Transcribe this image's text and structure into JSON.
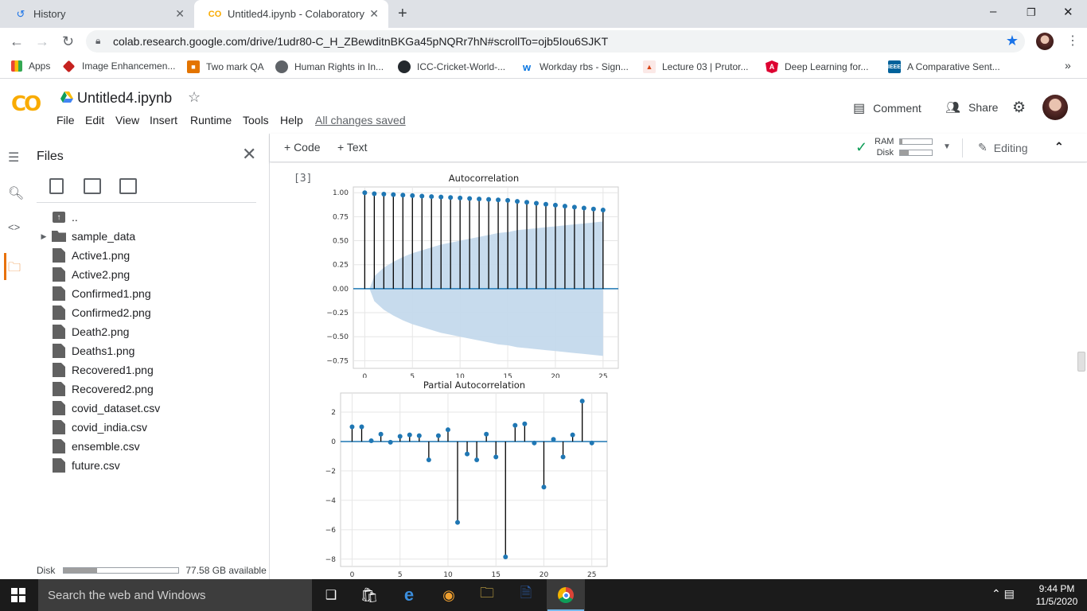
{
  "browser": {
    "tabs": [
      {
        "title": "History",
        "icon": "history-icon"
      },
      {
        "title": "Untitled4.ipynb - Colaboratory",
        "icon": "colab-icon"
      }
    ],
    "url": "colab.research.google.com/drive/1udr80-C_H_ZBewditnBKGa45pNQRr7hN#scrollTo=ojb5Iou6SJKT",
    "bookmarks": [
      {
        "label": "Apps",
        "icon": "apps-grid-icon"
      },
      {
        "label": "Image Enhancemen...",
        "icon": "bookmark-favicon"
      },
      {
        "label": "Two mark QA",
        "icon": "bookmark-favicon"
      },
      {
        "label": "Human Rights in In...",
        "icon": "bookmark-favicon"
      },
      {
        "label": "ICC-Cricket-World-...",
        "icon": "github-icon"
      },
      {
        "label": "Workday rbs - Sign...",
        "icon": "workday-icon"
      },
      {
        "label": "Lecture 03 | Prutor...",
        "icon": "bookmark-favicon"
      },
      {
        "label": "Deep Learning for...",
        "icon": "angular-icon"
      },
      {
        "label": "A Comparative Sent...",
        "icon": "ieee-icon"
      }
    ],
    "more_bookmarks": "»"
  },
  "colab": {
    "logo": "CO",
    "notebook_title": "Untitled4.ipynb",
    "menus": [
      "File",
      "Edit",
      "View",
      "Insert",
      "Runtime",
      "Tools",
      "Help"
    ],
    "save_status": "All changes saved",
    "comment_label": "Comment",
    "share_label": "Share",
    "accent_color": "#f9ab00"
  },
  "files_panel": {
    "title": "Files",
    "entries": [
      {
        "name": "..",
        "kind": "parent"
      },
      {
        "name": "sample_data",
        "kind": "folder"
      },
      {
        "name": "Active1.png",
        "kind": "file"
      },
      {
        "name": "Active2.png",
        "kind": "file"
      },
      {
        "name": "Confirmed1.png",
        "kind": "file"
      },
      {
        "name": "Confirmed2.png",
        "kind": "file"
      },
      {
        "name": "Death2.png",
        "kind": "file"
      },
      {
        "name": "Deaths1.png",
        "kind": "file"
      },
      {
        "name": "Recovered1.png",
        "kind": "file"
      },
      {
        "name": "Recovered2.png",
        "kind": "file"
      },
      {
        "name": "covid_dataset.csv",
        "kind": "file"
      },
      {
        "name": "covid_india.csv",
        "kind": "file"
      },
      {
        "name": "ensemble.csv",
        "kind": "file"
      },
      {
        "name": "future.csv",
        "kind": "file"
      }
    ],
    "disk_label": "Disk",
    "disk_available": "77.58 GB available",
    "disk_used_fraction": 0.29
  },
  "toolbar": {
    "add_code": "+ Code",
    "add_text": "+ Text",
    "ram_label": "RAM",
    "disk_label": "Disk",
    "ram_used_fraction": 0.08,
    "disk_used_fraction": 0.28,
    "editing_label": "Editing"
  },
  "cell": {
    "execution_count": "[3]"
  },
  "chart_data": [
    {
      "type": "stem",
      "title": "Autocorrelation",
      "x": [
        0,
        1,
        2,
        3,
        4,
        5,
        6,
        7,
        8,
        9,
        10,
        11,
        12,
        13,
        14,
        15,
        16,
        17,
        18,
        19,
        20,
        21,
        22,
        23,
        24,
        25
      ],
      "values": [
        1.0,
        0.99,
        0.985,
        0.98,
        0.975,
        0.97,
        0.965,
        0.96,
        0.955,
        0.95,
        0.945,
        0.94,
        0.935,
        0.93,
        0.925,
        0.92,
        0.91,
        0.9,
        0.89,
        0.88,
        0.87,
        0.86,
        0.85,
        0.84,
        0.83,
        0.82
      ],
      "confidence_band": [
        0,
        0.13,
        0.22,
        0.28,
        0.33,
        0.37,
        0.4,
        0.43,
        0.46,
        0.48,
        0.5,
        0.52,
        0.54,
        0.56,
        0.58,
        0.59,
        0.61,
        0.62,
        0.63,
        0.64,
        0.65,
        0.66,
        0.67,
        0.68,
        0.69,
        0.7
      ],
      "xticks": [
        0,
        5,
        10,
        15,
        20,
        25
      ],
      "yticks": [
        "1.00",
        "0.75",
        "0.50",
        "0.25",
        "0.00",
        "−0.25",
        "−0.50",
        "−0.75"
      ],
      "xlim": [
        -1.2,
        26.6
      ],
      "ylim": [
        -0.83,
        1.06
      ],
      "colors": {
        "marker": "#1f77b4",
        "stem": "#000000",
        "band": "#c4d9ec"
      }
    },
    {
      "type": "stem",
      "title": "Partial Autocorrelation",
      "x": [
        0,
        1,
        2,
        3,
        4,
        5,
        6,
        7,
        8,
        9,
        10,
        11,
        12,
        13,
        14,
        15,
        16,
        17,
        18,
        19,
        20,
        21,
        22,
        23,
        24,
        25
      ],
      "values": [
        1.0,
        1.0,
        0.05,
        0.5,
        -0.05,
        0.35,
        0.45,
        0.4,
        -1.25,
        0.4,
        0.8,
        -5.5,
        -0.85,
        -1.25,
        0.5,
        -1.05,
        -7.85,
        1.1,
        1.2,
        -0.1,
        -3.1,
        0.15,
        -1.05,
        0.45,
        2.75,
        -0.1
      ],
      "xticks": [
        0,
        5,
        10,
        15,
        20,
        25
      ],
      "yticks": [
        "2",
        "0",
        "−2",
        "−4",
        "−6",
        "−8"
      ],
      "xlim": [
        -1.2,
        26.6
      ],
      "ylim": [
        -8.5,
        3.3
      ],
      "colors": {
        "marker": "#1f77b4",
        "stem": "#000000",
        "band": "#c4d9ec"
      }
    }
  ],
  "taskbar": {
    "search_placeholder": "Search the web and Windows",
    "time": "9:44 PM",
    "date": "11/5/2020"
  }
}
